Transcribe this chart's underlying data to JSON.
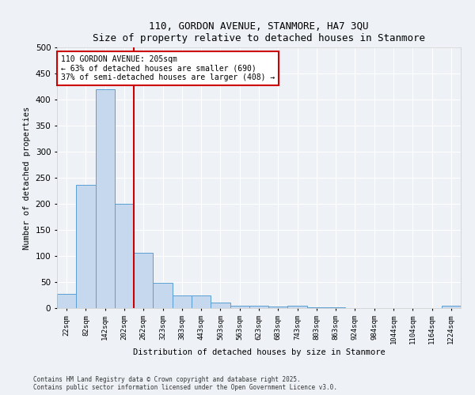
{
  "title": "110, GORDON AVENUE, STANMORE, HA7 3QU",
  "subtitle": "Size of property relative to detached houses in Stanmore",
  "xlabel": "Distribution of detached houses by size in Stanmore",
  "ylabel": "Number of detached properties",
  "bar_labels": [
    "22sqm",
    "82sqm",
    "142sqm",
    "202sqm",
    "262sqm",
    "323sqm",
    "383sqm",
    "443sqm",
    "503sqm",
    "563sqm",
    "623sqm",
    "683sqm",
    "743sqm",
    "803sqm",
    "863sqm",
    "924sqm",
    "984sqm",
    "1044sqm",
    "1104sqm",
    "1164sqm",
    "1224sqm"
  ],
  "bar_values": [
    27,
    237,
    420,
    200,
    106,
    49,
    24,
    24,
    10,
    5,
    4,
    3,
    5,
    1,
    1,
    0,
    0,
    0,
    0,
    0,
    4
  ],
  "bar_color": "#c5d8ed",
  "bar_edge_color": "#5a9fd4",
  "vline_bin_index": 3,
  "annotation_text": "110 GORDON AVENUE: 205sqm\n← 63% of detached houses are smaller (690)\n37% of semi-detached houses are larger (408) →",
  "annotation_box_color": "#ffffff",
  "annotation_box_edge_color": "#cc0000",
  "ylim": [
    0,
    500
  ],
  "yticks": [
    0,
    50,
    100,
    150,
    200,
    250,
    300,
    350,
    400,
    450,
    500
  ],
  "background_color": "#eef2f7",
  "grid_color": "#ffffff",
  "footer_line1": "Contains HM Land Registry data © Crown copyright and database right 2025.",
  "footer_line2": "Contains public sector information licensed under the Open Government Licence v3.0."
}
